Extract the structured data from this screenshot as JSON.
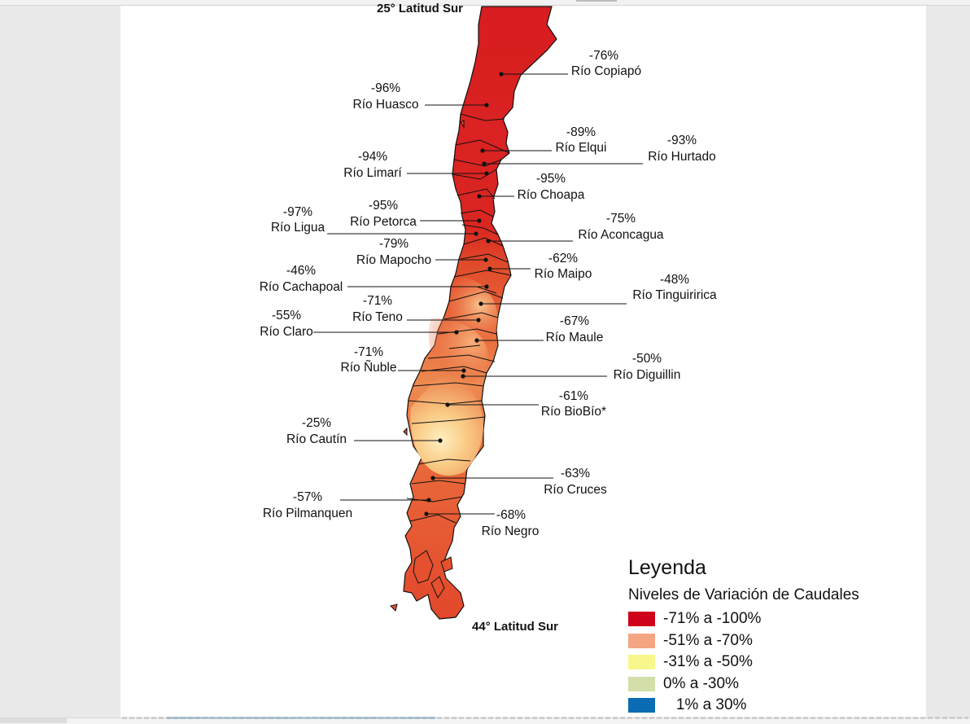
{
  "map": {
    "lat_top": "25° Latitud Sur",
    "lat_bottom": "44° Latitud Sur",
    "rivers": [
      {
        "name": "Río Copiapó",
        "pct": "-76%",
        "side": "right",
        "level": "red"
      },
      {
        "name": "Río Huasco",
        "pct": "-96%",
        "side": "left",
        "level": "red"
      },
      {
        "name": "Río Elqui",
        "pct": "-89%",
        "side": "right",
        "level": "red"
      },
      {
        "name": "Río Hurtado",
        "pct": "-93%",
        "side": "right",
        "level": "red"
      },
      {
        "name": "Río Limarí",
        "pct": "-94%",
        "side": "left",
        "level": "red"
      },
      {
        "name": "Río Choapa",
        "pct": "-95%",
        "side": "right",
        "level": "red"
      },
      {
        "name": "Río Petorca",
        "pct": "-95%",
        "side": "left",
        "level": "red"
      },
      {
        "name": "Río Ligua",
        "pct": "-97%",
        "side": "left",
        "level": "red"
      },
      {
        "name": "Río Aconcagua",
        "pct": "-75%",
        "side": "right",
        "level": "red"
      },
      {
        "name": "Río Mapocho",
        "pct": "-79%",
        "side": "left",
        "level": "red"
      },
      {
        "name": "Río Maipo",
        "pct": "-62%",
        "side": "right",
        "level": "orange"
      },
      {
        "name": "Río Cachapoal",
        "pct": "-46%",
        "side": "left",
        "level": "yellow"
      },
      {
        "name": "Río Tinguiririca",
        "pct": "-48%",
        "side": "right",
        "level": "yellow"
      },
      {
        "name": "Río Teno",
        "pct": "-71%",
        "side": "left",
        "level": "red"
      },
      {
        "name": "Río Claro",
        "pct": "-55%",
        "side": "left",
        "level": "orange"
      },
      {
        "name": "Río Maule",
        "pct": "-67%",
        "side": "right",
        "level": "orange"
      },
      {
        "name": "Río Ñuble",
        "pct": "-71%",
        "side": "left",
        "level": "red"
      },
      {
        "name": "Río Diguillin",
        "pct": "-50%",
        "side": "right",
        "level": "yellow"
      },
      {
        "name": "Río BioBío*",
        "pct": "-61%",
        "side": "right",
        "level": "orange"
      },
      {
        "name": "Río Cautín",
        "pct": "-25%",
        "side": "left",
        "level": "green"
      },
      {
        "name": "Río Cruces",
        "pct": "-63%",
        "side": "right",
        "level": "orange"
      },
      {
        "name": "Río Pilmanquen",
        "pct": "-57%",
        "side": "left",
        "level": "orange"
      },
      {
        "name": "Río Negro",
        "pct": "-68%",
        "side": "right",
        "level": "orange"
      }
    ]
  },
  "legend": {
    "title": "Leyenda",
    "subtitle": "Niveles de Variación de Caudales",
    "items": [
      {
        "label": "-71% a -100%",
        "color": "#d0021b"
      },
      {
        "label": "-51% a -70%",
        "color": "#f4a582"
      },
      {
        "label": "-31% a -50%",
        "color": "#f7f78c"
      },
      {
        "label": "0% a -30%",
        "color": "#d2dfa8"
      },
      {
        "label": "   1% a 30%",
        "color": "#0b6cb4"
      }
    ]
  }
}
